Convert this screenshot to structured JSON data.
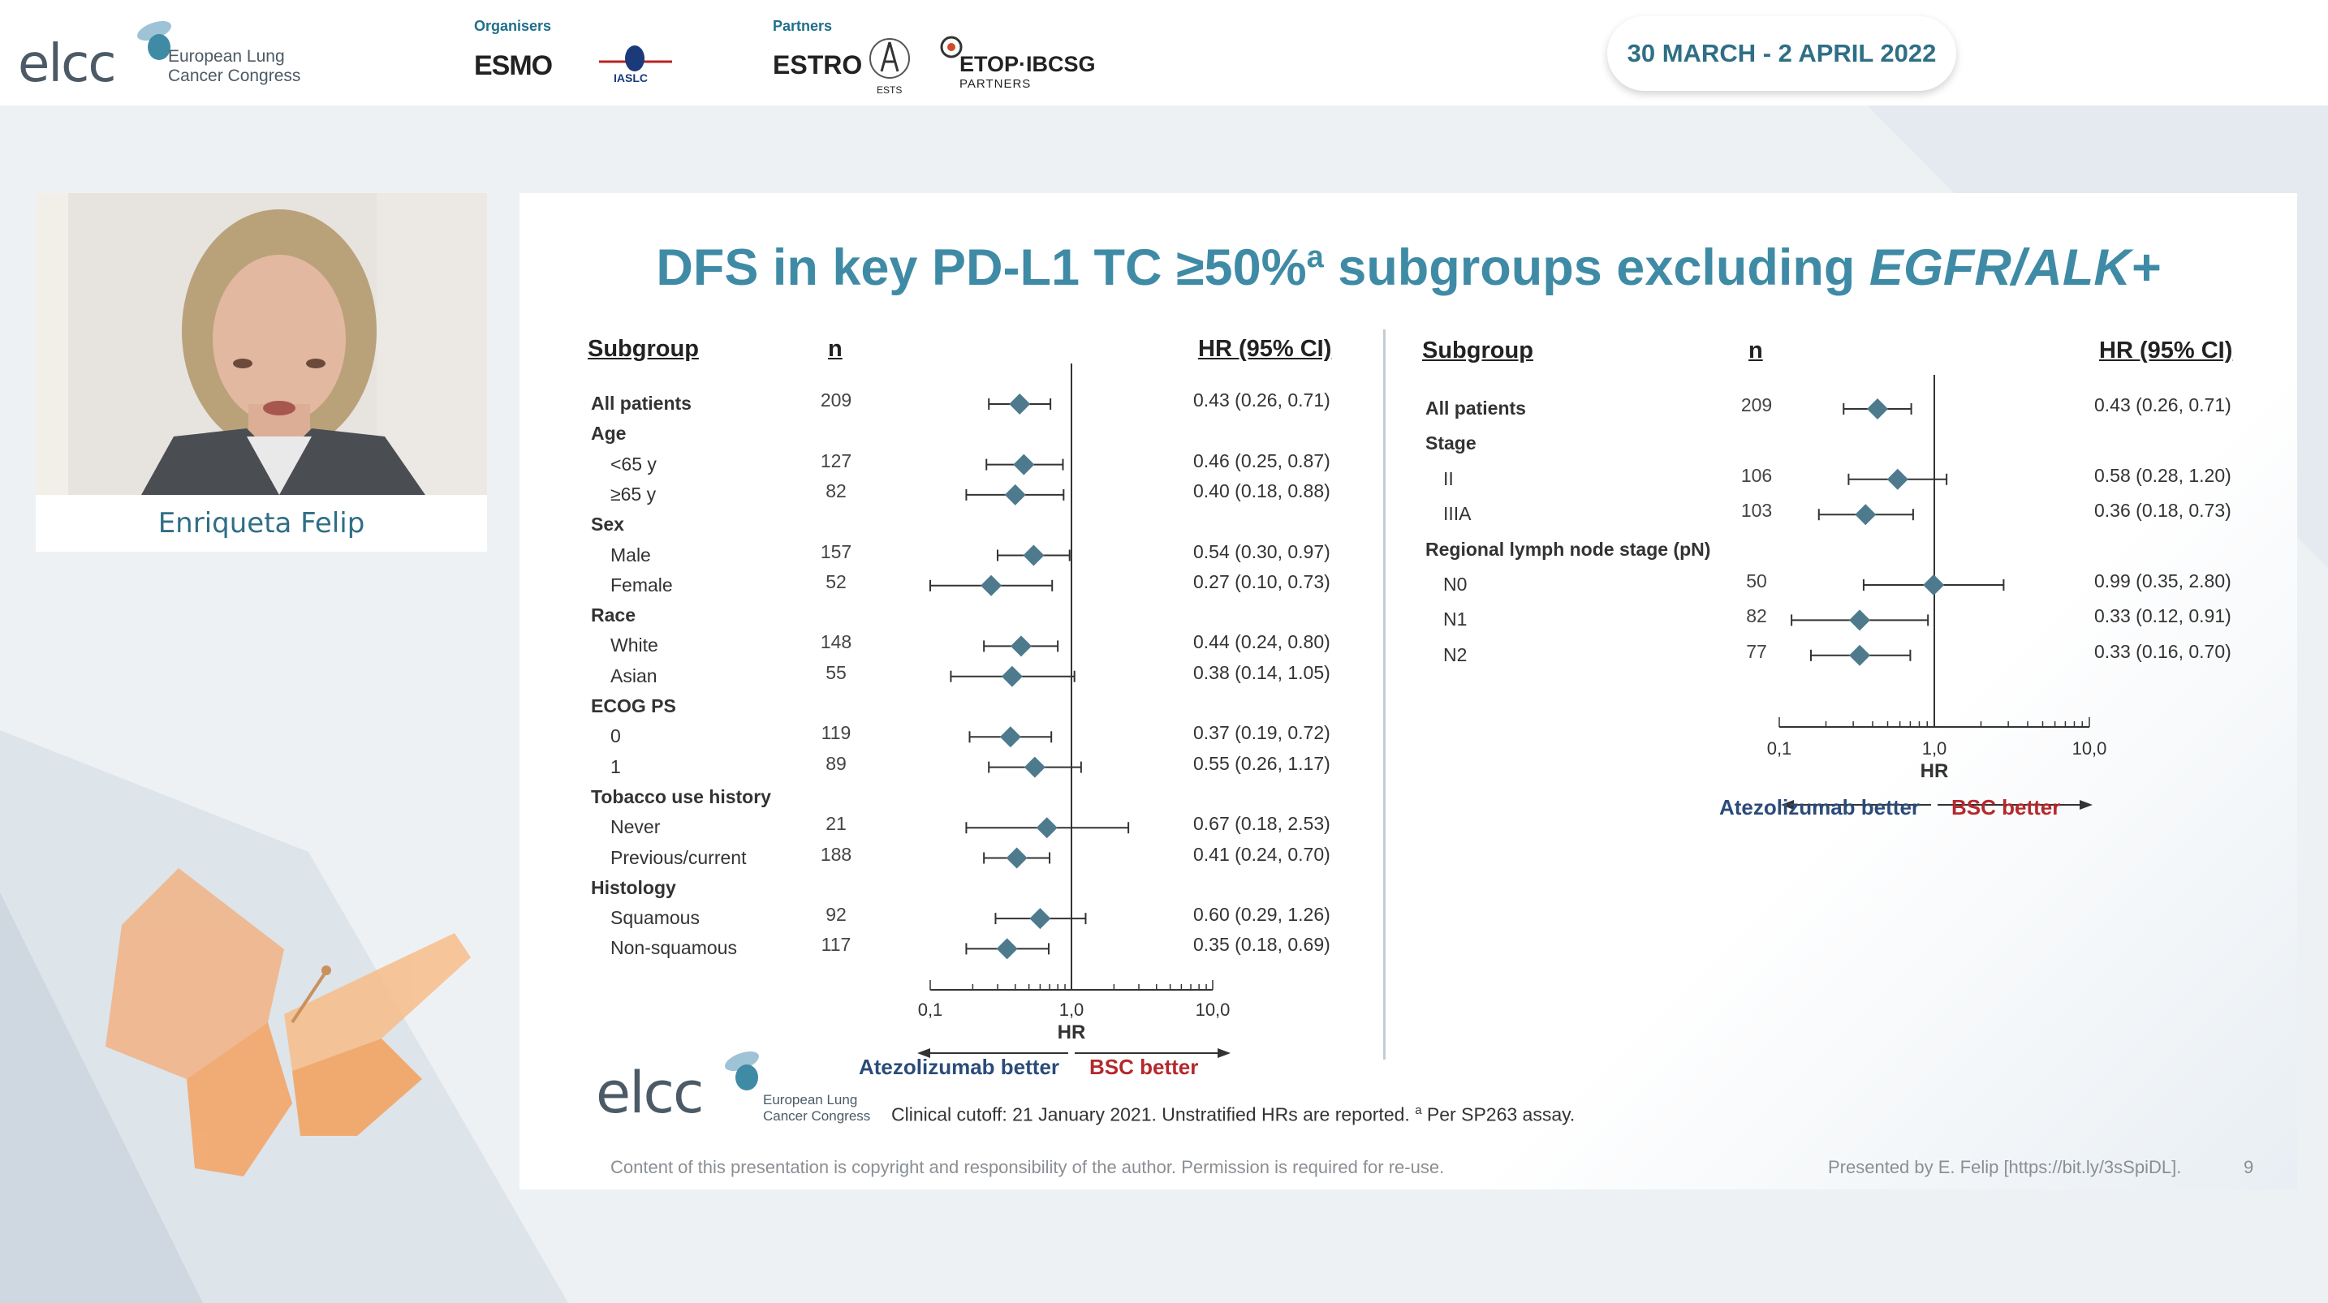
{
  "header": {
    "logo_word": "elcc",
    "logo_subtitle": "European Lung Cancer Congress",
    "organisers_label": "Organisers",
    "organiser_1": "ESMO",
    "organiser_2": "IASLC",
    "partners_label": "Partners",
    "partner_1": "ESTRO",
    "partner_2": "ESTS",
    "partner_3": "ETOP·IBCSG",
    "partner_3_sub": "PARTNERS",
    "date": "30 MARCH - 2 APRIL 2022"
  },
  "speaker": {
    "name": "Enriqueta Felip"
  },
  "slide": {
    "title_main": "DFS in key PD-L1 TC ≥50%",
    "title_sup": "a",
    "title_mid": " subgroups excluding ",
    "title_italic": "EGFR/ALK+",
    "left_table": {
      "col_subgroup": "Subgroup",
      "col_n": "n",
      "col_hr": "HR (95% CI)",
      "axis_label": "HR",
      "better_left": "Atezolizumab better",
      "better_right": "BSC better",
      "ticks": [
        "0,1",
        "1,0",
        "10,0"
      ]
    },
    "right_table": {
      "col_subgroup": "Subgroup",
      "col_n": "n",
      "col_hr": "HR (95% CI)",
      "axis_label": "HR",
      "better_left": "Atezolizumab better",
      "better_right": "BSC better",
      "ticks": [
        "0,1",
        "1,0",
        "10,0"
      ]
    },
    "footnote": "Clinical cutoff: 21 January 2021. Unstratified HRs are reported.",
    "footnote_sup": "a",
    "footnote_tail": " Per SP263 assay.",
    "bottom_logo_word": "elcc",
    "bottom_logo_subtitle": "European Lung Cancer Congress",
    "copyright": "Content of this presentation is copyright and responsibility of the author. Permission is required for re-use.",
    "presented_by": "Presented by E. Felip [https://bit.ly/3sSpiDL].",
    "page_number": "9"
  },
  "chart_data": [
    {
      "type": "forest",
      "xlabel": "HR",
      "xscale": "log",
      "xlim": [
        0.1,
        10
      ],
      "reference_line": 1.0,
      "rows": [
        {
          "label": "All patients",
          "category": true,
          "n": "209",
          "hr": 0.43,
          "lo": 0.26,
          "hi": 0.71,
          "text": "0.43 (0.26, 0.71)"
        },
        {
          "label": "Age",
          "category": true
        },
        {
          "label": "<65 y",
          "n": "127",
          "hr": 0.46,
          "lo": 0.25,
          "hi": 0.87,
          "text": "0.46 (0.25, 0.87)"
        },
        {
          "label": "≥65 y",
          "n": "82",
          "hr": 0.4,
          "lo": 0.18,
          "hi": 0.88,
          "text": "0.40 (0.18, 0.88)"
        },
        {
          "label": "Sex",
          "category": true
        },
        {
          "label": "Male",
          "n": "157",
          "hr": 0.54,
          "lo": 0.3,
          "hi": 0.97,
          "text": "0.54 (0.30, 0.97)"
        },
        {
          "label": "Female",
          "n": "52",
          "hr": 0.27,
          "lo": 0.1,
          "hi": 0.73,
          "text": "0.27 (0.10, 0.73)"
        },
        {
          "label": "Race",
          "category": true
        },
        {
          "label": "White",
          "n": "148",
          "hr": 0.44,
          "lo": 0.24,
          "hi": 0.8,
          "text": "0.44 (0.24, 0.80)"
        },
        {
          "label": "Asian",
          "n": "55",
          "hr": 0.38,
          "lo": 0.14,
          "hi": 1.05,
          "text": "0.38 (0.14, 1.05)"
        },
        {
          "label": "ECOG PS",
          "category": true
        },
        {
          "label": "0",
          "n": "119",
          "hr": 0.37,
          "lo": 0.19,
          "hi": 0.72,
          "text": "0.37 (0.19, 0.72)"
        },
        {
          "label": "1",
          "n": "89",
          "hr": 0.55,
          "lo": 0.26,
          "hi": 1.17,
          "text": "0.55 (0.26, 1.17)"
        },
        {
          "label": "Tobacco use history",
          "category": true
        },
        {
          "label": "Never",
          "n": "21",
          "hr": 0.67,
          "lo": 0.18,
          "hi": 2.53,
          "text": "0.67 (0.18, 2.53)"
        },
        {
          "label": "Previous/current",
          "n": "188",
          "hr": 0.41,
          "lo": 0.24,
          "hi": 0.7,
          "text": "0.41 (0.24, 0.70)"
        },
        {
          "label": "Histology",
          "category": true
        },
        {
          "label": "Squamous",
          "n": "92",
          "hr": 0.6,
          "lo": 0.29,
          "hi": 1.26,
          "text": "0.60 (0.29, 1.26)"
        },
        {
          "label": "Non-squamous",
          "n": "117",
          "hr": 0.35,
          "lo": 0.18,
          "hi": 0.69,
          "text": "0.35 (0.18, 0.69)"
        }
      ]
    },
    {
      "type": "forest",
      "xlabel": "HR",
      "xscale": "log",
      "xlim": [
        0.1,
        10
      ],
      "reference_line": 1.0,
      "rows": [
        {
          "label": "All patients",
          "category": true,
          "n": "209",
          "hr": 0.43,
          "lo": 0.26,
          "hi": 0.71,
          "text": "0.43 (0.26, 0.71)"
        },
        {
          "label": "Stage",
          "category": true
        },
        {
          "label": "II",
          "n": "106",
          "hr": 0.58,
          "lo": 0.28,
          "hi": 1.2,
          "text": "0.58 (0.28, 1.20)"
        },
        {
          "label": "IIIA",
          "n": "103",
          "hr": 0.36,
          "lo": 0.18,
          "hi": 0.73,
          "text": "0.36 (0.18, 0.73)"
        },
        {
          "label": "Regional lymph node stage (pN)",
          "category": true
        },
        {
          "label": "N0",
          "n": "50",
          "hr": 0.99,
          "lo": 0.35,
          "hi": 2.8,
          "text": "0.99 (0.35, 2.80)"
        },
        {
          "label": "N1",
          "n": "82",
          "hr": 0.33,
          "lo": 0.12,
          "hi": 0.91,
          "text": "0.33 (0.12, 0.91)"
        },
        {
          "label": "N2",
          "n": "77",
          "hr": 0.33,
          "lo": 0.16,
          "hi": 0.7,
          "text": "0.33 (0.16, 0.70)"
        }
      ]
    }
  ]
}
